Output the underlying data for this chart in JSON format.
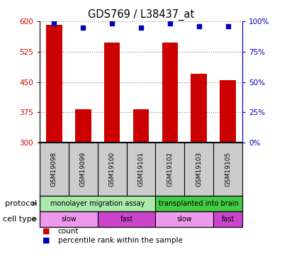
{
  "title": "GDS769 / L38437_at",
  "samples": [
    "GSM19098",
    "GSM19099",
    "GSM19100",
    "GSM19101",
    "GSM19102",
    "GSM19103",
    "GSM19105"
  ],
  "count_values": [
    592,
    383,
    548,
    383,
    548,
    470,
    455
  ],
  "percentile_values": [
    98,
    95,
    98,
    95,
    98,
    96,
    96
  ],
  "ylim_left": [
    300,
    600
  ],
  "ylim_right": [
    0,
    100
  ],
  "yticks_left": [
    300,
    375,
    450,
    525,
    600
  ],
  "yticks_right": [
    0,
    25,
    50,
    75,
    100
  ],
  "bar_color": "#cc0000",
  "dot_color": "#0000bb",
  "protocol_groups": [
    {
      "label": "monolayer migration assay",
      "start": 0,
      "end": 4,
      "color": "#aaeaaa"
    },
    {
      "label": "transplanted into brain",
      "start": 4,
      "end": 7,
      "color": "#44cc44"
    }
  ],
  "celltype_groups": [
    {
      "label": "slow",
      "start": 0,
      "end": 2,
      "color": "#ee99ee"
    },
    {
      "label": "fast",
      "start": 2,
      "end": 4,
      "color": "#cc44cc"
    },
    {
      "label": "slow",
      "start": 4,
      "end": 6,
      "color": "#ee99ee"
    },
    {
      "label": "fast",
      "start": 6,
      "end": 7,
      "color": "#cc44cc"
    }
  ],
  "legend_count_label": "count",
  "legend_percentile_label": "percentile rank within the sample",
  "protocol_label": "protocol",
  "celltype_label": "cell type",
  "left_axis_color": "#cc0000",
  "right_axis_color": "#0000bb",
  "grid_color": "#888888",
  "bg_color": "#ffffff",
  "sample_box_color": "#cccccc",
  "bar_width": 0.55
}
